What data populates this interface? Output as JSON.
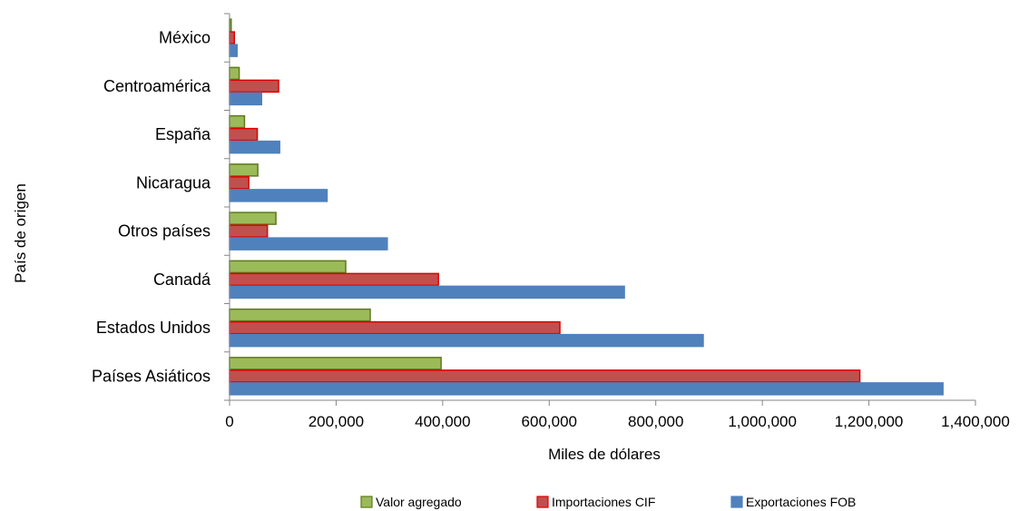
{
  "chart_data": {
    "type": "bar",
    "orientation": "horizontal",
    "categories": [
      "México",
      "Centroamérica",
      "España",
      "Nicaragua",
      "Otros países",
      "Canadá",
      "Estados Unidos",
      "Países Asiáticos"
    ],
    "series": [
      {
        "name": "Valor agregado",
        "values": [
          3000,
          18000,
          28000,
          53000,
          87000,
          218000,
          264000,
          397000
        ],
        "color": "#9BBB59",
        "stroke": "#5E7A1F"
      },
      {
        "name": "Importaciones CIF",
        "values": [
          9000,
          92000,
          52000,
          36000,
          71000,
          392000,
          620000,
          1183000
        ],
        "color": "#C0504D",
        "stroke": "#E00000"
      },
      {
        "name": "Exportaciones FOB",
        "values": [
          14000,
          60000,
          94000,
          183000,
          296000,
          741000,
          889000,
          1339000
        ],
        "color": "#4F81BD",
        "stroke": "#4F81BD"
      }
    ],
    "xlim": [
      0,
      1400000
    ],
    "xticks": [
      "0",
      "200,000",
      "400,000",
      "600,000",
      "800,000",
      "1,000,000",
      "1,200,000",
      "1,400,000"
    ],
    "xlabel": "Miles de dólares",
    "ylabel": "País de origen",
    "legend_position": "bottom",
    "grid": false
  }
}
